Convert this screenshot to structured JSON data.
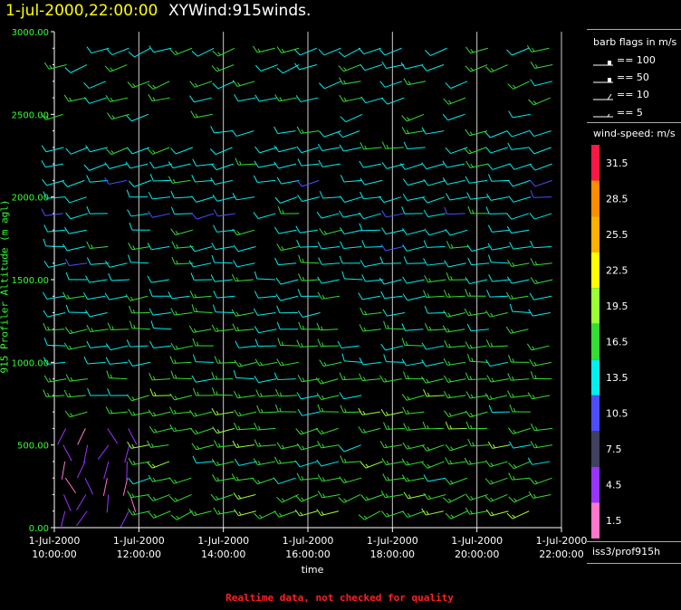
{
  "header": {
    "date": "1-jul-2000,22:00:00",
    "title": "XYWind:915winds."
  },
  "footer": "Realtime data, not checked for quality",
  "chart_data": {
    "type": "wind-barb",
    "ylabel": "915 Profiler Altitude (m agl)",
    "xlabel": "time",
    "ylim": [
      0,
      3000
    ],
    "yticks": [
      "0.00",
      "500.00",
      "1000.00",
      "1500.00",
      "2000.00",
      "2500.00",
      "3000.00"
    ],
    "xlim_hours": [
      10,
      22
    ],
    "xticks": [
      {
        "hour": 10,
        "line1": "1-Jul-2000",
        "line2": "10:00:00"
      },
      {
        "hour": 12,
        "line1": "1-Jul-2000",
        "line2": "12:00:00"
      },
      {
        "hour": 14,
        "line1": "1-Jul-2000",
        "line2": "14:00:00"
      },
      {
        "hour": 16,
        "line1": "1-Jul-2000",
        "line2": "16:00:00"
      },
      {
        "hour": 18,
        "line1": "1-Jul-2000",
        "line2": "18:00:00"
      },
      {
        "hour": 20,
        "line1": "1-Jul-2000",
        "line2": "20:00:00"
      },
      {
        "hour": 22,
        "line1": "1-Jul-2000",
        "line2": "22:00:00"
      }
    ],
    "grid_vertical": true,
    "wind_profile": [
      {
        "altitude": 100,
        "speed": 17,
        "direction": 250
      },
      {
        "altitude": 300,
        "speed": 16,
        "direction": 255
      },
      {
        "altitude": 600,
        "speed": 17,
        "direction": 260
      },
      {
        "altitude": 1000,
        "speed": 16,
        "direction": 265
      },
      {
        "altitude": 1500,
        "speed": 14,
        "direction": 265
      },
      {
        "altitude": 2000,
        "speed": 13,
        "direction": 260
      },
      {
        "altitude": 2500,
        "speed": 15,
        "direction": 255
      },
      {
        "altitude": 3000,
        "speed": 14,
        "direction": 250
      }
    ],
    "barb_flags": {
      "title": "barb flags in m/s",
      "entries": [
        "== 100",
        "== 50",
        "== 10",
        "== 5"
      ]
    },
    "colorbar": {
      "title": "wind-speed: m/s",
      "labels": [
        "31.5",
        "28.5",
        "25.5",
        "22.5",
        "19.5",
        "16.5",
        "13.5",
        "10.5",
        "7.5",
        "4.5",
        "1.5"
      ],
      "colors": [
        "#ff1744",
        "#ff8c00",
        "#ffb000",
        "#ffff00",
        "#99ff33",
        "#33dd33",
        "#00eeee",
        "#4d4dff",
        "#404060",
        "#9933ff",
        "#ff77cc"
      ]
    },
    "station": "iss3/prof915h"
  }
}
